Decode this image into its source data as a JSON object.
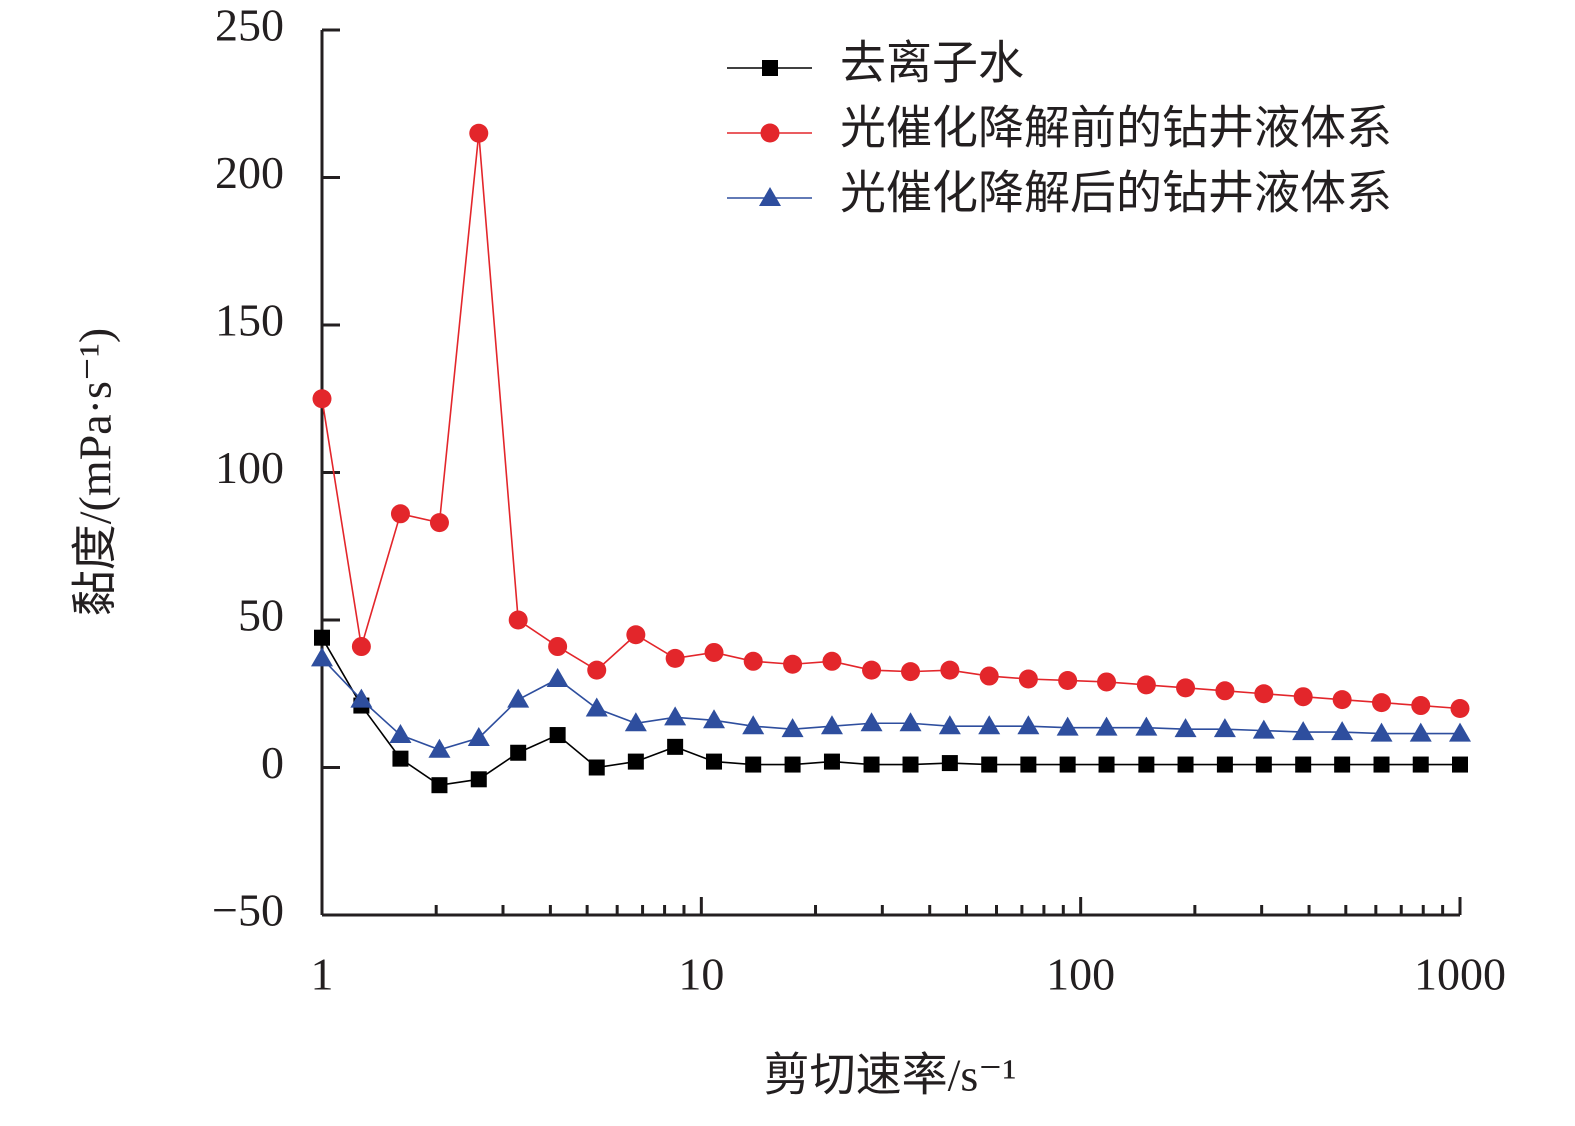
{
  "chart_data": {
    "type": "line",
    "xlabel": "剪切速率/s⁻¹",
    "ylabel": "黏度/(mPa·s⁻¹)",
    "x_scale": "log",
    "xlim": [
      1,
      1000
    ],
    "xticks": [
      1,
      10,
      100,
      1000
    ],
    "ylim": [
      -50,
      250
    ],
    "yticks": [
      {
        "value": -50,
        "label": "−50"
      },
      0,
      50,
      100,
      150,
      200,
      250
    ],
    "legend": "upper right",
    "x": [
      1,
      1.27,
      1.61,
      2.04,
      2.59,
      3.29,
      4.18,
      5.3,
      6.72,
      8.53,
      10.8,
      13.7,
      17.4,
      22.1,
      28.1,
      35.6,
      45.2,
      57.4,
      72.8,
      92.4,
      117,
      149,
      189,
      240,
      304,
      386,
      489,
      621,
      788,
      1000
    ],
    "series": [
      {
        "name": "去离子水",
        "color": "#000000",
        "marker": "square",
        "values": [
          44,
          21,
          3,
          -6,
          -4,
          5,
          11,
          0,
          2,
          7,
          2,
          1,
          1,
          2,
          1,
          1,
          1.5,
          1,
          1,
          1,
          1,
          1,
          1,
          1,
          1,
          1,
          1,
          1,
          1,
          1
        ]
      },
      {
        "name": "光催化降解前的钻井液体系",
        "color": "#e3262b",
        "marker": "circle",
        "values": [
          125,
          41,
          86,
          83,
          215,
          50,
          41,
          33,
          45,
          37,
          39,
          36,
          35,
          36,
          33,
          32.5,
          33,
          31,
          30,
          29.5,
          29,
          28,
          27,
          26,
          25,
          24,
          23,
          22,
          21,
          20
        ]
      },
      {
        "name": "光催化降解后的钻井液体系",
        "color": "#2e4e9e",
        "marker": "triangle",
        "values": [
          37,
          23,
          11,
          6,
          10,
          23,
          30,
          20,
          15,
          17,
          16,
          14,
          13,
          14,
          15,
          15,
          14,
          14,
          14,
          13.5,
          13.5,
          13.5,
          13,
          13,
          12.5,
          12,
          12,
          11.5,
          11.5,
          11.5
        ]
      }
    ]
  }
}
